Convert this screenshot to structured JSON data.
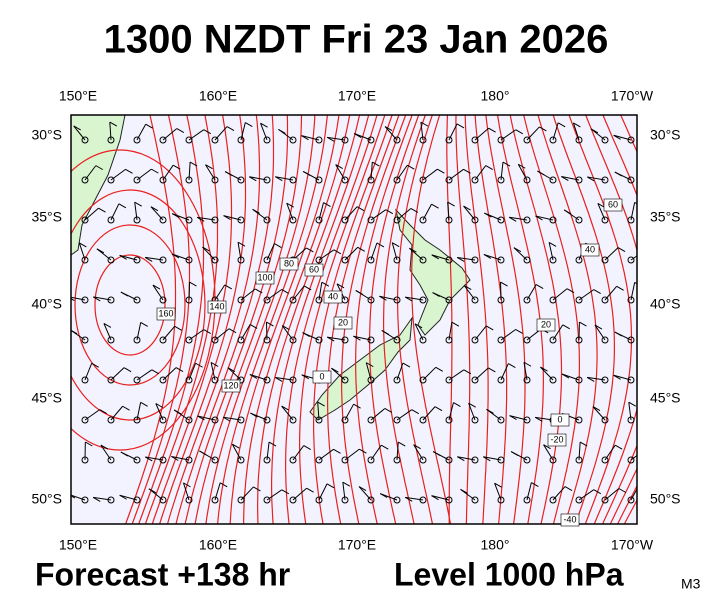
{
  "header": {
    "title": "1300 NZDT Fri 23 Jan 2026"
  },
  "axes": {
    "top": [
      "150°E",
      "160°E",
      "170°E",
      "180°",
      "170°W"
    ],
    "bottom": [
      "150°E",
      "160°E",
      "170°E",
      "180°",
      "170°W"
    ],
    "left": [
      "30°S",
      "35°S",
      "40°S",
      "45°S",
      "50°S"
    ],
    "right": [
      "30°S",
      "35°S",
      "40°S",
      "45°S",
      "50°S"
    ]
  },
  "contour_labels": [
    "160",
    "140",
    "120",
    "100",
    "80",
    "60",
    "40",
    "20",
    "0",
    "60",
    "40",
    "20",
    "0",
    "-20",
    "-40"
  ],
  "footer": {
    "forecast": "Forecast +138 hr",
    "level": "Level 1000 hPa",
    "model": "M3"
  }
}
